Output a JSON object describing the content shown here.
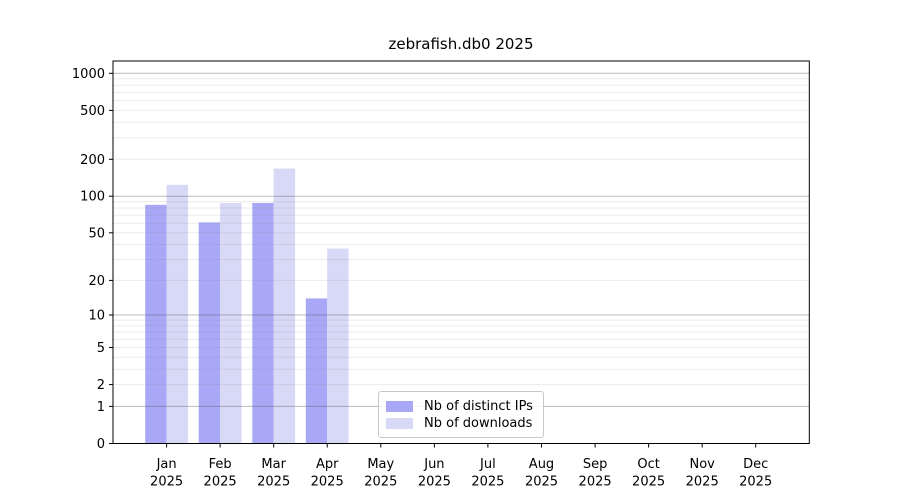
{
  "chart_data": {
    "type": "bar",
    "title": "zebrafish.db0 2025",
    "scale": "log1p",
    "grid": true,
    "legend_position": "bottom-center",
    "categories": [
      "Jan",
      "Feb",
      "Mar",
      "Apr",
      "May",
      "Jun",
      "Jul",
      "Aug",
      "Sep",
      "Oct",
      "Nov",
      "Dec"
    ],
    "year_label": "2025",
    "yticks": [
      0,
      1,
      2,
      5,
      10,
      20,
      50,
      100,
      200,
      500,
      1000
    ],
    "ylim": [
      0,
      1258
    ],
    "series": [
      {
        "name": "Nb of distinct IPs",
        "color": "#a8a8f7",
        "values": [
          85,
          61,
          88,
          14,
          0,
          0,
          0,
          0,
          0,
          0,
          0,
          0
        ]
      },
      {
        "name": "Nb of downloads",
        "color": "#d8d8f7",
        "values": [
          124,
          88,
          168,
          37,
          0,
          0,
          0,
          0,
          0,
          0,
          0,
          0
        ]
      }
    ]
  }
}
